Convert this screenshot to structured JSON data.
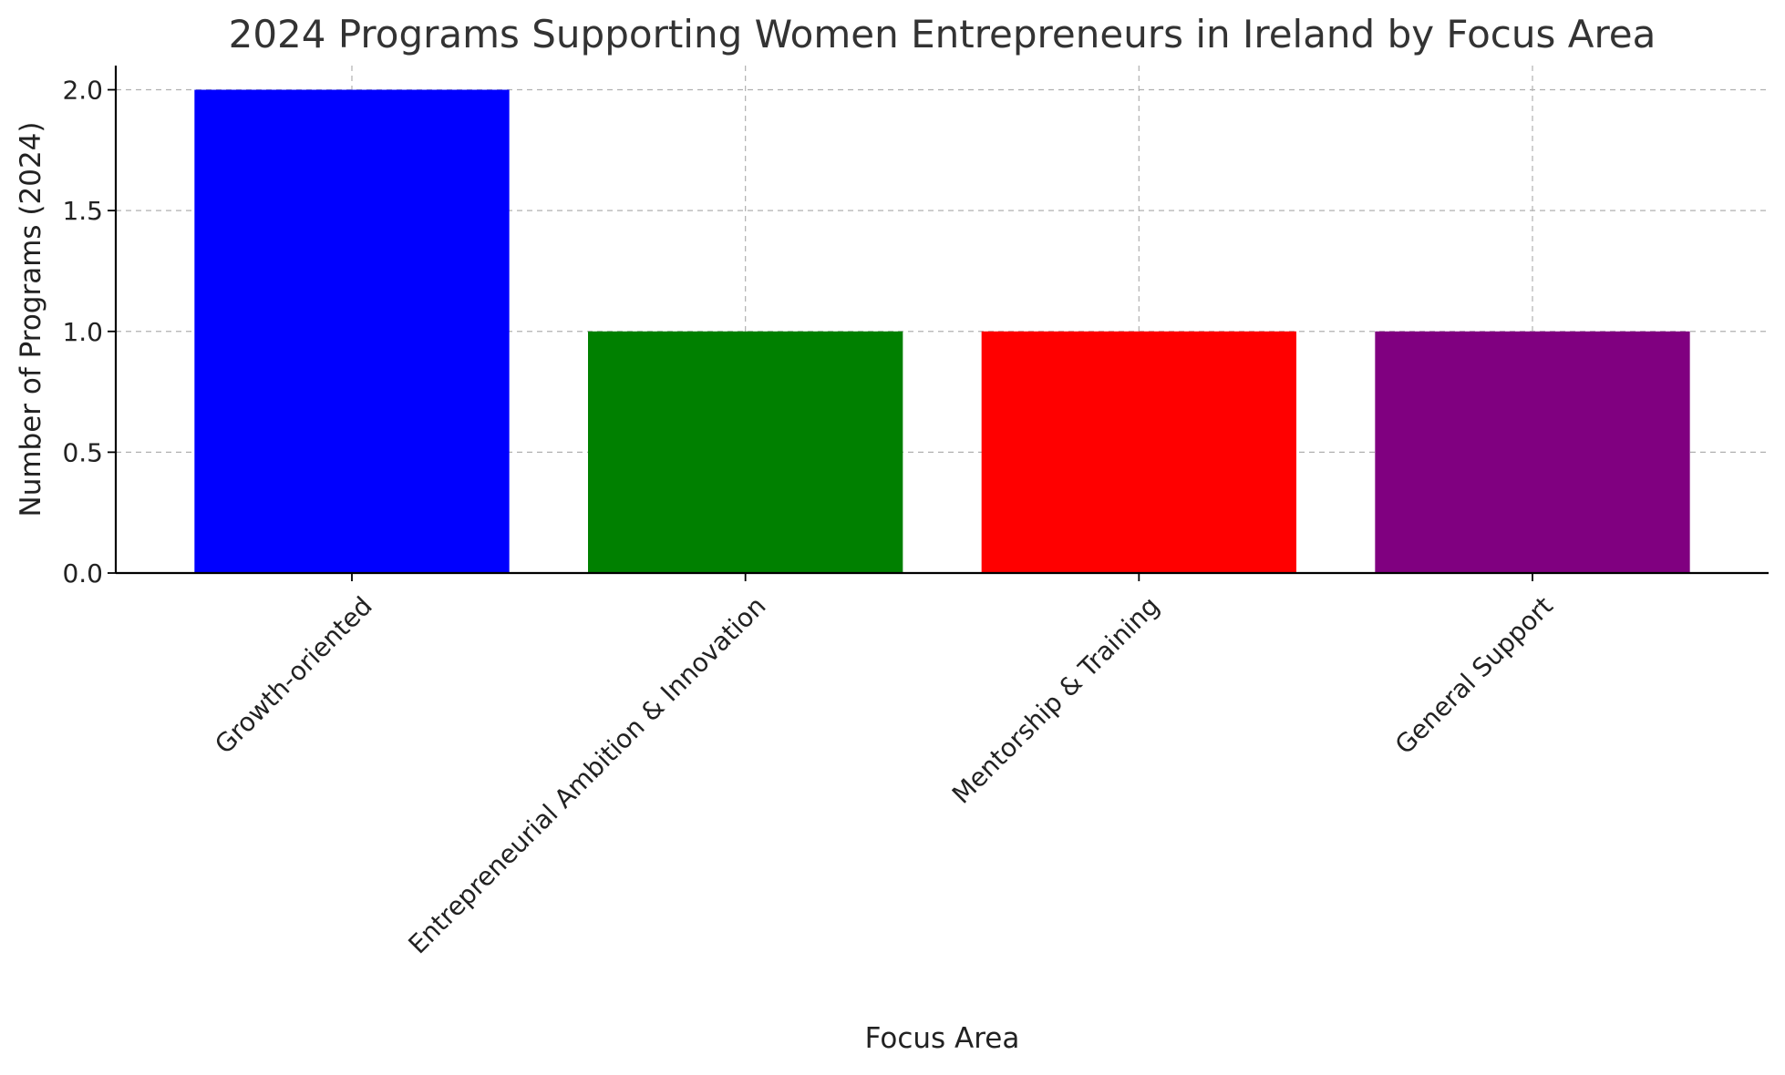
{
  "chart_data": {
    "type": "bar",
    "title": "2024 Programs Supporting Women Entrepreneurs in Ireland by Focus Area",
    "xlabel": "Focus Area",
    "ylabel": "Number of Programs (2024)",
    "categories": [
      "Growth-oriented",
      "Entrepreneurial Ambition & Innovation",
      "Mentorship & Training",
      "General Support"
    ],
    "values": [
      2,
      1,
      1,
      1
    ],
    "colors": [
      "#0000ff",
      "#008000",
      "#ff0000",
      "#800080"
    ],
    "ylim": [
      0,
      2.1
    ],
    "yticks": [
      0.0,
      0.5,
      1.0,
      1.5,
      2.0
    ],
    "ytick_labels": [
      "0.0",
      "0.5",
      "1.0",
      "1.5",
      "2.0"
    ],
    "grid": true,
    "xtick_rotation_deg": 45
  }
}
